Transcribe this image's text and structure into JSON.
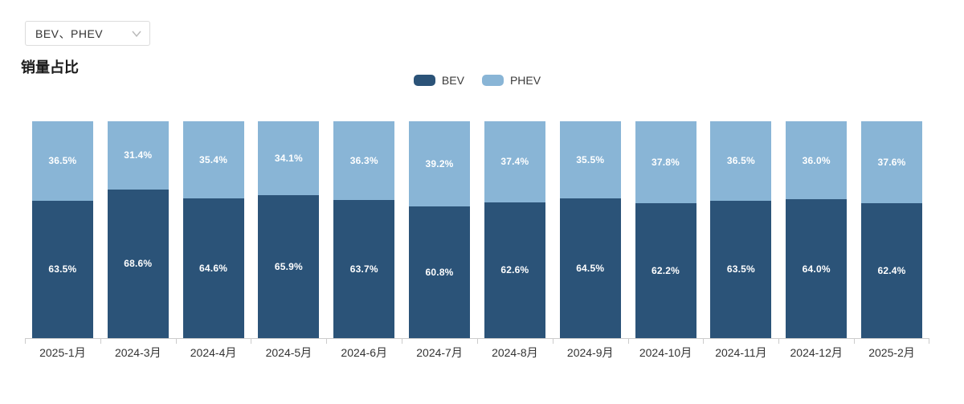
{
  "filter_dropdown": {
    "value": "BEV、PHEV"
  },
  "page_title": "销量占比",
  "colors": {
    "bev": "#2b5378",
    "phev": "#89b5d6",
    "axis": "#cccccc",
    "bar_label_text": "#ffffff"
  },
  "legend": {
    "position": "top-center",
    "items": [
      {
        "name": "BEV",
        "color": "#2b5378"
      },
      {
        "name": "PHEV",
        "color": "#89b5d6"
      }
    ]
  },
  "chart_data": {
    "type": "bar",
    "stacked": true,
    "orientation": "vertical",
    "unit": "%",
    "title": "销量占比",
    "xlabel": "",
    "ylabel": "",
    "ylim": [
      0,
      100
    ],
    "grid": false,
    "y_axis_visible": false,
    "value_labels": "inside-center",
    "legend_position": "top-center",
    "categories": [
      "2025-1月",
      "2024-3月",
      "2024-4月",
      "2024-5月",
      "2024-6月",
      "2024-7月",
      "2024-8月",
      "2024-9月",
      "2024-10月",
      "2024-11月",
      "2024-12月",
      "2025-2月"
    ],
    "series": [
      {
        "name": "BEV",
        "color": "#2b5378",
        "values": [
          63.5,
          68.6,
          64.6,
          65.9,
          63.7,
          60.8,
          62.6,
          64.5,
          62.2,
          63.5,
          64.0,
          62.4
        ],
        "labels": [
          "63.5%",
          "68.6%",
          "64.6%",
          "65.9%",
          "63.7%",
          "60.8%",
          "62.6%",
          "64.5%",
          "62.2%",
          "63.5%",
          "64.0%",
          "62.4%"
        ]
      },
      {
        "name": "PHEV",
        "color": "#89b5d6",
        "values": [
          36.5,
          31.4,
          35.4,
          34.1,
          36.3,
          39.2,
          37.4,
          35.5,
          37.8,
          36.5,
          36.0,
          37.6
        ],
        "labels": [
          "36.5%",
          "31.4%",
          "35.4%",
          "34.1%",
          "36.3%",
          "39.2%",
          "37.4%",
          "35.5%",
          "37.8%",
          "36.5%",
          "36.0%",
          "37.6%"
        ]
      }
    ]
  }
}
